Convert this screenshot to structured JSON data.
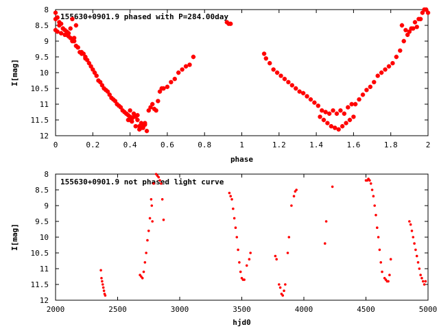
{
  "chart_data": [
    {
      "type": "scatter",
      "title": "155630+0901.9 phased with P=284.00day",
      "xlabel": "phase",
      "ylabel": "I[mag]",
      "xlim": [
        0,
        2
      ],
      "ylim": [
        12,
        8
      ],
      "y_inverted": true,
      "x_ticks": [
        0,
        0.2,
        0.4,
        0.6,
        0.8,
        1,
        1.2,
        1.4,
        1.6,
        1.8,
        2
      ],
      "x_tick_labels": [
        "0",
        "0.2",
        "0.4",
        "0.6",
        "0.8",
        "1",
        "1.2",
        "1.4",
        "1.6",
        "1.8",
        "2"
      ],
      "y_ticks": [
        8,
        8.5,
        9,
        9.5,
        10,
        10.5,
        11,
        11.5,
        12
      ],
      "y_tick_labels": [
        "8",
        "8.5",
        "9",
        "9.5",
        "10",
        "10.5",
        "11",
        "11.5",
        "12"
      ],
      "marker": "star",
      "color": "#ff0000",
      "series": [
        {
          "x": [
            0.0,
            0.01,
            0.02,
            0.03,
            0.04,
            0.05,
            0.06,
            0.07,
            0.08,
            0.09,
            0.1,
            0.11,
            0.12,
            0.13,
            0.14,
            0.15,
            0.16,
            0.17,
            0.18,
            0.19,
            0.2,
            0.21,
            0.22,
            0.23,
            0.24,
            0.25,
            0.26,
            0.27,
            0.28,
            0.29,
            0.3,
            0.31,
            0.32,
            0.33,
            0.34,
            0.35,
            0.36,
            0.37,
            0.38,
            0.39,
            0.4,
            0.4,
            0.41,
            0.42,
            0.43,
            0.44,
            0.45,
            0.46,
            0.47,
            0.48,
            0.49,
            0.5,
            0.51,
            0.52,
            0.53,
            0.54,
            0.55,
            0.56,
            0.57,
            0.58,
            0.6,
            0.62,
            0.64,
            0.66,
            0.68,
            0.7,
            0.72,
            0.74,
            0.0,
            0.02,
            0.04,
            0.06,
            0.08,
            0.1,
            0.12,
            0.14,
            0.16,
            0.4,
            0.42,
            0.44,
            0.46,
            0.48,
            0.0,
            0.01,
            0.03,
            0.05,
            0.07,
            0.09,
            0.11,
            0.38,
            0.39,
            0.41,
            0.43,
            0.45,
            0.47,
            0.92,
            0.93,
            0.94,
            1.12,
            1.13,
            1.15,
            1.17,
            1.19,
            1.21,
            1.23,
            1.25,
            1.27,
            1.29,
            1.31,
            1.33,
            1.35,
            1.37,
            1.39,
            1.41,
            1.43,
            1.45,
            1.47,
            1.49,
            1.51,
            1.53,
            1.55,
            1.57,
            1.59,
            1.61,
            1.63,
            1.65,
            1.67,
            1.69,
            1.71,
            1.73,
            1.75,
            1.77,
            1.79,
            1.81,
            1.83,
            1.85,
            1.87,
            1.89,
            1.91,
            1.93,
            1.95,
            1.97,
            1.99,
            1.42,
            1.44,
            1.46,
            1.48,
            1.5,
            1.52,
            1.54,
            1.56,
            1.58,
            1.6,
            1.86,
            1.88,
            1.9,
            1.92,
            1.94,
            1.96,
            1.98,
            2.0
          ],
          "y": [
            8.3,
            8.25,
            8.4,
            8.45,
            8.6,
            8.65,
            8.7,
            8.75,
            8.6,
            8.3,
            8.9,
            8.5,
            9.2,
            9.35,
            9.4,
            9.4,
            9.55,
            9.6,
            9.7,
            9.8,
            9.9,
            10.0,
            10.1,
            10.25,
            10.3,
            10.4,
            10.5,
            10.55,
            10.6,
            10.7,
            10.8,
            10.85,
            10.9,
            11.0,
            11.05,
            11.1,
            11.2,
            11.25,
            11.3,
            11.35,
            11.4,
            11.5,
            11.45,
            11.3,
            11.4,
            11.5,
            11.7,
            11.75,
            11.7,
            11.6,
            11.85,
            11.2,
            11.1,
            11.0,
            11.15,
            11.2,
            10.9,
            10.6,
            10.5,
            10.5,
            10.45,
            10.3,
            10.2,
            10.0,
            9.9,
            9.8,
            9.75,
            9.5,
            8.1,
            8.5,
            8.6,
            8.8,
            8.9,
            9.0,
            9.2,
            9.35,
            9.5,
            11.2,
            11.4,
            11.35,
            11.6,
            11.65,
            8.65,
            8.7,
            8.75,
            8.8,
            8.85,
            9.0,
            9.15,
            11.3,
            11.5,
            11.55,
            11.7,
            11.8,
            11.75,
            8.4,
            8.45,
            8.45,
            9.4,
            9.55,
            9.7,
            9.9,
            10.0,
            10.1,
            10.2,
            10.3,
            10.4,
            10.5,
            10.6,
            10.65,
            10.75,
            10.85,
            10.95,
            11.05,
            11.2,
            11.25,
            11.3,
            11.2,
            11.3,
            11.2,
            11.3,
            11.1,
            11.0,
            11.0,
            10.85,
            10.7,
            10.55,
            10.45,
            10.3,
            10.1,
            10.0,
            9.9,
            9.8,
            9.7,
            9.5,
            9.3,
            9.0,
            8.8,
            8.6,
            8.4,
            8.3,
            8.1,
            8.0,
            11.4,
            11.5,
            11.6,
            11.7,
            11.75,
            11.8,
            11.7,
            11.6,
            11.5,
            11.4,
            8.5,
            8.65,
            8.7,
            8.6,
            8.55,
            8.3,
            8.0,
            8.1
          ]
        }
      ]
    },
    {
      "type": "scatter",
      "title": "155630+0901.9 not phased light curve",
      "xlabel": "hjd0",
      "ylabel": "I[mag]",
      "xlim": [
        2000,
        5000
      ],
      "ylim": [
        12,
        8
      ],
      "y_inverted": true,
      "x_ticks": [
        2000,
        2500,
        3000,
        3500,
        4000,
        4500,
        5000
      ],
      "x_tick_labels": [
        "2000",
        "2500",
        "3000",
        "3500",
        "4000",
        "4500",
        "5000"
      ],
      "y_ticks": [
        8,
        8.5,
        9,
        9.5,
        10,
        10.5,
        11,
        11.5,
        12
      ],
      "y_tick_labels": [
        "8",
        "8.5",
        "9",
        "9.5",
        "10",
        "10.5",
        "11",
        "11.5",
        "12"
      ],
      "marker": "dot",
      "color": "#ff0000",
      "series": [
        {
          "x": [
            2365,
            2370,
            2375,
            2380,
            2385,
            2390,
            2395,
            2400,
            2680,
            2690,
            2700,
            2710,
            2720,
            2730,
            2740,
            2750,
            2760,
            2770,
            2775,
            2780,
            2790,
            2810,
            2820,
            2830,
            2840,
            2850,
            2860,
            2870,
            3400,
            3410,
            3420,
            3430,
            3440,
            3450,
            3460,
            3470,
            3480,
            3490,
            3500,
            3510,
            3520,
            3540,
            3560,
            3570,
            3770,
            3780,
            3800,
            3810,
            3820,
            3830,
            3840,
            3850,
            3870,
            3880,
            3900,
            3920,
            3930,
            3940,
            4170,
            4180,
            4230,
            4500,
            4510,
            4520,
            4530,
            4540,
            4550,
            4560,
            4570,
            4580,
            4590,
            4600,
            4610,
            4620,
            4630,
            4650,
            4660,
            4670,
            4680,
            4690,
            4700,
            4850,
            4860,
            4870,
            4880,
            4890,
            4900,
            4910,
            4920,
            4930,
            4940,
            4950,
            4960,
            4970,
            4980
          ],
          "y": [
            11.05,
            11.3,
            11.4,
            11.5,
            11.6,
            11.7,
            11.8,
            11.85,
            11.2,
            11.25,
            11.3,
            11.1,
            10.8,
            10.5,
            10.1,
            9.8,
            9.4,
            8.8,
            9.0,
            9.5,
            8.3,
            8.0,
            8.05,
            8.1,
            8.2,
            8.3,
            8.8,
            9.45,
            8.6,
            8.7,
            8.8,
            9.1,
            9.4,
            9.7,
            10.0,
            10.4,
            10.8,
            11.1,
            11.3,
            11.35,
            11.35,
            10.9,
            10.7,
            10.5,
            10.6,
            10.7,
            11.5,
            11.6,
            11.8,
            11.85,
            11.7,
            11.5,
            10.5,
            10.0,
            9.0,
            8.7,
            8.55,
            8.5,
            10.2,
            9.5,
            8.4,
            8.2,
            8.2,
            8.15,
            8.2,
            8.3,
            8.5,
            8.7,
            9.0,
            9.3,
            9.7,
            10.0,
            10.4,
            10.8,
            11.1,
            11.3,
            11.35,
            11.4,
            11.4,
            11.2,
            10.7,
            9.5,
            9.6,
            9.8,
            10.0,
            10.2,
            10.4,
            10.6,
            10.8,
            11.0,
            11.2,
            11.3,
            11.4,
            11.5,
            11.4
          ]
        }
      ]
    }
  ]
}
